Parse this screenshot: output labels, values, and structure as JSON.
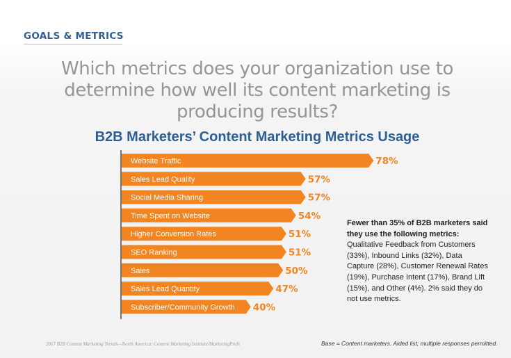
{
  "section": {
    "label": "GOALS & METRICS"
  },
  "question": "Which metrics does your organization use to determine how well its content marketing is producing results?",
  "chart_data": {
    "type": "bar",
    "orientation": "horizontal",
    "title": "B2B Marketers’ Content Marketing Metrics Usage",
    "categories": [
      "Website Traffic",
      "Sales Lead Quality",
      "Social Media Sharing",
      "Time Spent on Website",
      "Higher Conversion Rates",
      "SEO Ranking",
      "Sales",
      "Sales Lead Quantity",
      "Subscriber/Community Growth"
    ],
    "values": [
      78,
      57,
      57,
      54,
      51,
      51,
      50,
      47,
      40
    ],
    "value_labels": [
      "78%",
      "57%",
      "57%",
      "54%",
      "51%",
      "51%",
      "50%",
      "47%",
      "40%"
    ],
    "xlim": [
      0,
      100
    ],
    "unit": "%",
    "bar_color": "#f28522"
  },
  "note": {
    "bold": "Fewer than 35% of B2B marketers said they use the following metrics:",
    "text": " Qualitative Feedback from Customers (33%), Inbound Links (32%), Data Capture (28%), Customer Renewal Rates (19%), Purchase Intent (17%), Brand Lift (15%), and Other (4%). 2% said they do not use metrics."
  },
  "footer": {
    "source": "2017 B2B Content Marketing Trends—North America: Content Marketing Institute/MarketingProfs",
    "base": "Base = Content marketers. Aided list; multiple responses permitted."
  },
  "colors": {
    "accent_blue": "#2e5f93",
    "bar_orange": "#f28522",
    "question_gray": "#959595"
  }
}
